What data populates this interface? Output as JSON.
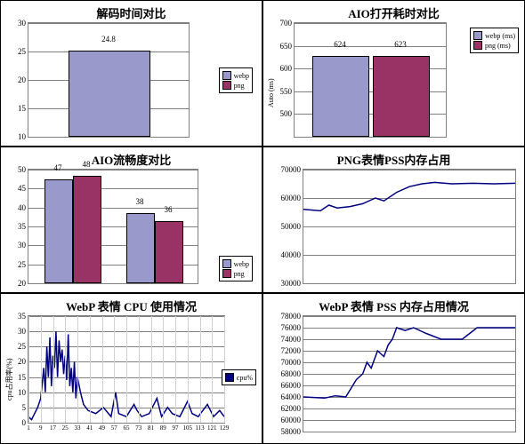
{
  "colors": {
    "webp": "#9999cc",
    "png": "#993366",
    "plotbg": "#c0c0c0",
    "grid": "#808080",
    "line": "#000080",
    "border": "#000000"
  },
  "panels": {
    "decode": {
      "title": "解码时间对比",
      "type": "bar",
      "ylim": [
        10,
        30
      ],
      "ytick_step": 5,
      "bars": [
        {
          "label": "24.8",
          "value": 24.8,
          "color": "#9999cc"
        }
      ],
      "legend": [
        {
          "label": "webp",
          "color": "#9999cc"
        },
        {
          "label": "png",
          "color": "#993366"
        }
      ]
    },
    "aio_open": {
      "title": "AIO打开耗时对比",
      "type": "bar",
      "ylim": [
        450,
        700
      ],
      "yticks": [
        500,
        550,
        600,
        650,
        700
      ],
      "ylabel": "Auto (ms)",
      "bars": [
        {
          "label": "624",
          "value": 624,
          "color": "#9999cc"
        },
        {
          "label": "623",
          "value": 623,
          "color": "#993366"
        }
      ],
      "legend": [
        {
          "label": "webp (ms)",
          "color": "#9999cc"
        },
        {
          "label": "png (ms)",
          "color": "#993366"
        }
      ]
    },
    "aio_fluency": {
      "title": "AIO流畅度对比",
      "type": "bar_grouped",
      "ylim": [
        20,
        50
      ],
      "ytick_step": 5,
      "groups": [
        {
          "bars": [
            {
              "label": "47",
              "value": 47,
              "color": "#9999cc"
            },
            {
              "label": "48",
              "value": 48,
              "color": "#993366"
            }
          ]
        },
        {
          "bars": [
            {
              "label": "38",
              "value": 38,
              "color": "#9999cc"
            },
            {
              "label": "36",
              "value": 36,
              "color": "#993366"
            }
          ]
        }
      ],
      "legend": [
        {
          "label": "webp",
          "color": "#9999cc"
        },
        {
          "label": "png",
          "color": "#993366"
        }
      ]
    },
    "png_pss": {
      "title": "PNG表情PSS内存占用",
      "type": "line",
      "ylim": [
        30000,
        70000
      ],
      "ytick_step": 10000,
      "series": [
        {
          "color": "#000080",
          "points": [
            [
              0,
              56000
            ],
            [
              8,
              55500
            ],
            [
              12,
              57500
            ],
            [
              16,
              56500
            ],
            [
              22,
              57000
            ],
            [
              28,
              58000
            ],
            [
              34,
              60000
            ],
            [
              38,
              59000
            ],
            [
              44,
              62000
            ],
            [
              50,
              64000
            ],
            [
              56,
              65000
            ],
            [
              62,
              65500
            ],
            [
              70,
              65000
            ],
            [
              80,
              65200
            ],
            [
              90,
              65000
            ],
            [
              100,
              65200
            ]
          ]
        }
      ]
    },
    "webp_cpu": {
      "title": "WebP 表情 CPU 使用情况",
      "type": "line",
      "ylim": [
        0,
        35
      ],
      "ytick_step": 5,
      "ylabel": "cpu占用率(%)",
      "xticks": [
        1,
        9,
        17,
        25,
        33,
        41,
        49,
        57,
        65,
        73,
        81,
        89,
        97,
        105,
        113,
        121,
        129
      ],
      "legend": [
        {
          "label": "cpu%",
          "color": "#000080"
        }
      ],
      "series": [
        {
          "color": "#000080",
          "points": [
            [
              1,
              2
            ],
            [
              3,
              1
            ],
            [
              5,
              3
            ],
            [
              7,
              5
            ],
            [
              9,
              8
            ],
            [
              11,
              18
            ],
            [
              12,
              10
            ],
            [
              13,
              25
            ],
            [
              14,
              15
            ],
            [
              15,
              28
            ],
            [
              16,
              12
            ],
            [
              17,
              22
            ],
            [
              18,
              18
            ],
            [
              19,
              30
            ],
            [
              20,
              15
            ],
            [
              21,
              27
            ],
            [
              22,
              20
            ],
            [
              23,
              24
            ],
            [
              24,
              16
            ],
            [
              25,
              22
            ],
            [
              26,
              14
            ],
            [
              27,
              29
            ],
            [
              28,
              12
            ],
            [
              29,
              18
            ],
            [
              30,
              10
            ],
            [
              31,
              20
            ],
            [
              32,
              8
            ],
            [
              33,
              15
            ],
            [
              35,
              10
            ],
            [
              37,
              6
            ],
            [
              40,
              4
            ],
            [
              45,
              3
            ],
            [
              50,
              5
            ],
            [
              55,
              2
            ],
            [
              58,
              10
            ],
            [
              60,
              3
            ],
            [
              65,
              2
            ],
            [
              70,
              6
            ],
            [
              72,
              4
            ],
            [
              75,
              2
            ],
            [
              80,
              3
            ],
            [
              85,
              8
            ],
            [
              88,
              2
            ],
            [
              92,
              5
            ],
            [
              95,
              3
            ],
            [
              100,
              2
            ],
            [
              105,
              7
            ],
            [
              108,
              3
            ],
            [
              112,
              2
            ],
            [
              118,
              6
            ],
            [
              122,
              2
            ],
            [
              126,
              4
            ],
            [
              129,
              2
            ]
          ]
        }
      ]
    },
    "webp_pss": {
      "title": "WebP 表情 PSS 内存占用情况",
      "type": "line",
      "ylim": [
        58000,
        78000
      ],
      "ytick_step": 2000,
      "series": [
        {
          "color": "#000080",
          "points": [
            [
              0,
              64000
            ],
            [
              10,
              63800
            ],
            [
              15,
              64200
            ],
            [
              20,
              64000
            ],
            [
              25,
              67000
            ],
            [
              28,
              68000
            ],
            [
              30,
              70000
            ],
            [
              32,
              69000
            ],
            [
              35,
              72000
            ],
            [
              38,
              71000
            ],
            [
              40,
              73000
            ],
            [
              42,
              74000
            ],
            [
              44,
              76000
            ],
            [
              48,
              75500
            ],
            [
              52,
              76000
            ],
            [
              58,
              75000
            ],
            [
              65,
              74000
            ],
            [
              75,
              74000
            ],
            [
              82,
              76000
            ],
            [
              100,
              76000
            ]
          ]
        }
      ]
    }
  }
}
